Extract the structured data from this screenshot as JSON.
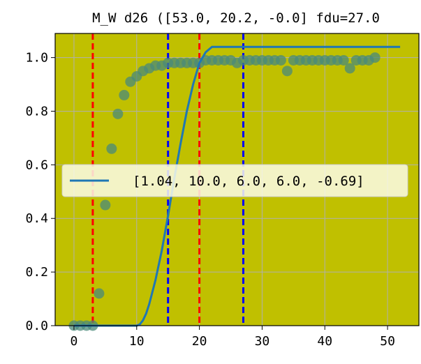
{
  "chart_data": {
    "type": "scatter",
    "title": "M_W d26 ([53.0, 20.2, -0.0] fdu=27.0",
    "xlabel": "",
    "ylabel": "",
    "xlim": [
      -3,
      55
    ],
    "ylim": [
      0,
      1.09
    ],
    "x_ticks": [
      0,
      10,
      20,
      30,
      40,
      50
    ],
    "y_ticks": [
      0.0,
      0.2,
      0.4,
      0.6,
      0.8,
      1.0
    ],
    "x_tick_labels": [
      "0",
      "10",
      "20",
      "30",
      "40",
      "50"
    ],
    "y_tick_labels": [
      "0.0",
      "0.2",
      "0.4",
      "0.6",
      "0.8",
      "1.0"
    ],
    "grid": true,
    "background_color": "#c0c000",
    "series": [
      {
        "kind": "scatter",
        "color": "#4a8a7a",
        "x": [
          0,
          1,
          2,
          3,
          4,
          5,
          6,
          7,
          8,
          9,
          10,
          11,
          12,
          13,
          14,
          15,
          16,
          17,
          18,
          19,
          20,
          21,
          22,
          23,
          24,
          25,
          26,
          27,
          28,
          29,
          30,
          31,
          32,
          33,
          34,
          35,
          36,
          37,
          38,
          39,
          40,
          41,
          42,
          43,
          44,
          45,
          46,
          47,
          48
        ],
        "y": [
          0.0,
          0.0,
          0.0,
          0.0,
          0.12,
          0.45,
          0.66,
          0.79,
          0.86,
          0.91,
          0.93,
          0.95,
          0.96,
          0.97,
          0.97,
          0.98,
          0.98,
          0.98,
          0.98,
          0.98,
          0.98,
          0.99,
          0.99,
          0.99,
          0.99,
          0.99,
          0.98,
          0.99,
          0.99,
          0.99,
          0.99,
          0.99,
          0.99,
          0.99,
          0.95,
          0.99,
          0.99,
          0.99,
          0.99,
          0.99,
          0.99,
          0.99,
          0.99,
          0.99,
          0.96,
          0.99,
          0.99,
          0.99,
          1.0
        ]
      },
      {
        "kind": "line",
        "name": "[1.04, 10.0, 6.0, 6.0, -0.69]",
        "color": "#1f77b4",
        "x": [
          0,
          10,
          10.5,
          11,
          11.5,
          12,
          13,
          14,
          15,
          16,
          17,
          18,
          19,
          20,
          21,
          22,
          52
        ],
        "y": [
          0.0,
          0.0,
          0.005,
          0.02,
          0.045,
          0.08,
          0.17,
          0.28,
          0.41,
          0.55,
          0.68,
          0.8,
          0.9,
          0.98,
          1.02,
          1.04,
          1.04
        ]
      }
    ],
    "vlines": [
      {
        "x": 3,
        "color": "#ff0000",
        "style": "dashed"
      },
      {
        "x": 15,
        "color": "#0000ff",
        "style": "dashed"
      },
      {
        "x": 20,
        "color": "#ff0000",
        "style": "dashed"
      },
      {
        "x": 27,
        "color": "#0000ff",
        "style": "dashed"
      }
    ],
    "legend": {
      "placement": "center-left"
    }
  }
}
